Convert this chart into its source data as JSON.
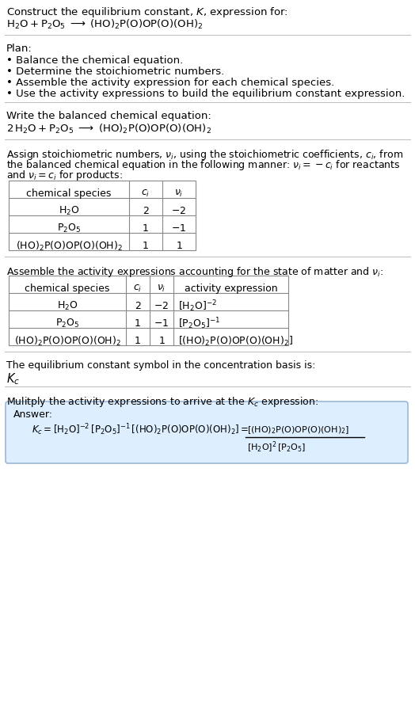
{
  "bg_color": "#ffffff",
  "text_color": "#000000",
  "divider_color": "#bbbbbb",
  "answer_box_color": "#ddeeff",
  "answer_box_border": "#9bb8d4",
  "font_family": "DejaVu Serif",
  "sections": {
    "title": {
      "line1": "Construct the equilibrium constant, $K$, expression for:",
      "line2": "$\\mathrm{H_2O + P_2O_5 \\;\\longrightarrow\\; (HO)_2P(O)OP(O)(OH)_2}$"
    },
    "plan": {
      "header": "Plan:",
      "items": [
        "• Balance the chemical equation.",
        "• Determine the stoichiometric numbers.",
        "• Assemble the activity expression for each chemical species.",
        "• Use the activity expressions to build the equilibrium constant expression."
      ]
    },
    "balanced": {
      "header": "Write the balanced chemical equation:",
      "eq": "$2\\,\\mathrm{H_2O + P_2O_5 \\;\\longrightarrow\\; (HO)_2P(O)OP(O)(OH)_2}$"
    },
    "stoich": {
      "header_parts": [
        "Assign stoichiometric numbers, $\\nu_i$, using the stoichiometric coefficients, $c_i$, from",
        "the balanced chemical equation in the following manner: $\\nu_i = -c_i$ for reactants",
        "and $\\nu_i = c_i$ for products:"
      ],
      "table_cols": [
        "chemical species",
        "$c_i$",
        "$\\nu_i$"
      ],
      "table_rows": [
        [
          "$\\mathrm{H_2O}$",
          "2",
          "$-2$"
        ],
        [
          "$\\mathrm{P_2O_5}$",
          "1",
          "$-1$"
        ],
        [
          "$\\mathrm{(HO)_2P(O)OP(O)(OH)_2}$",
          "1",
          "$1$"
        ]
      ]
    },
    "activity": {
      "header": "Assemble the activity expressions accounting for the state of matter and $\\nu_i$:",
      "table_cols": [
        "chemical species",
        "$c_i$",
        "$\\nu_i$",
        "activity expression"
      ],
      "table_rows": [
        [
          "$\\mathrm{H_2O}$",
          "2",
          "$-2$",
          "$[\\mathrm{H_2O}]^{-2}$"
        ],
        [
          "$\\mathrm{P_2O_5}$",
          "1",
          "$-1$",
          "$[\\mathrm{P_2O_5}]^{-1}$"
        ],
        [
          "$\\mathrm{(HO)_2P(O)OP(O)(OH)_2}$",
          "1",
          "$1$",
          "$[(\\mathrm{HO})_2\\mathrm{P(O)OP(O)(OH)_2}]$"
        ]
      ]
    },
    "kc": {
      "header": "The equilibrium constant symbol in the concentration basis is:",
      "symbol": "$K_c$"
    },
    "multiply": {
      "header": "Mulitply the activity expressions to arrive at the $K_c$ expression:",
      "answer_label": "Answer:",
      "kc_left": "$K_c = [\\mathrm{H_2O}]^{-2}\\,[\\mathrm{P_2O_5}]^{-1}\\,[(\\mathrm{HO})_2\\mathrm{P(O)OP(O)(OH)_2}] = $",
      "frac_num": "$[(\\mathrm{HO})_2\\mathrm{P(O)OP(O)(OH)_2}]$",
      "frac_den": "$[\\mathrm{H_2O}]^2\\,[\\mathrm{P_2O_5}]$"
    }
  }
}
